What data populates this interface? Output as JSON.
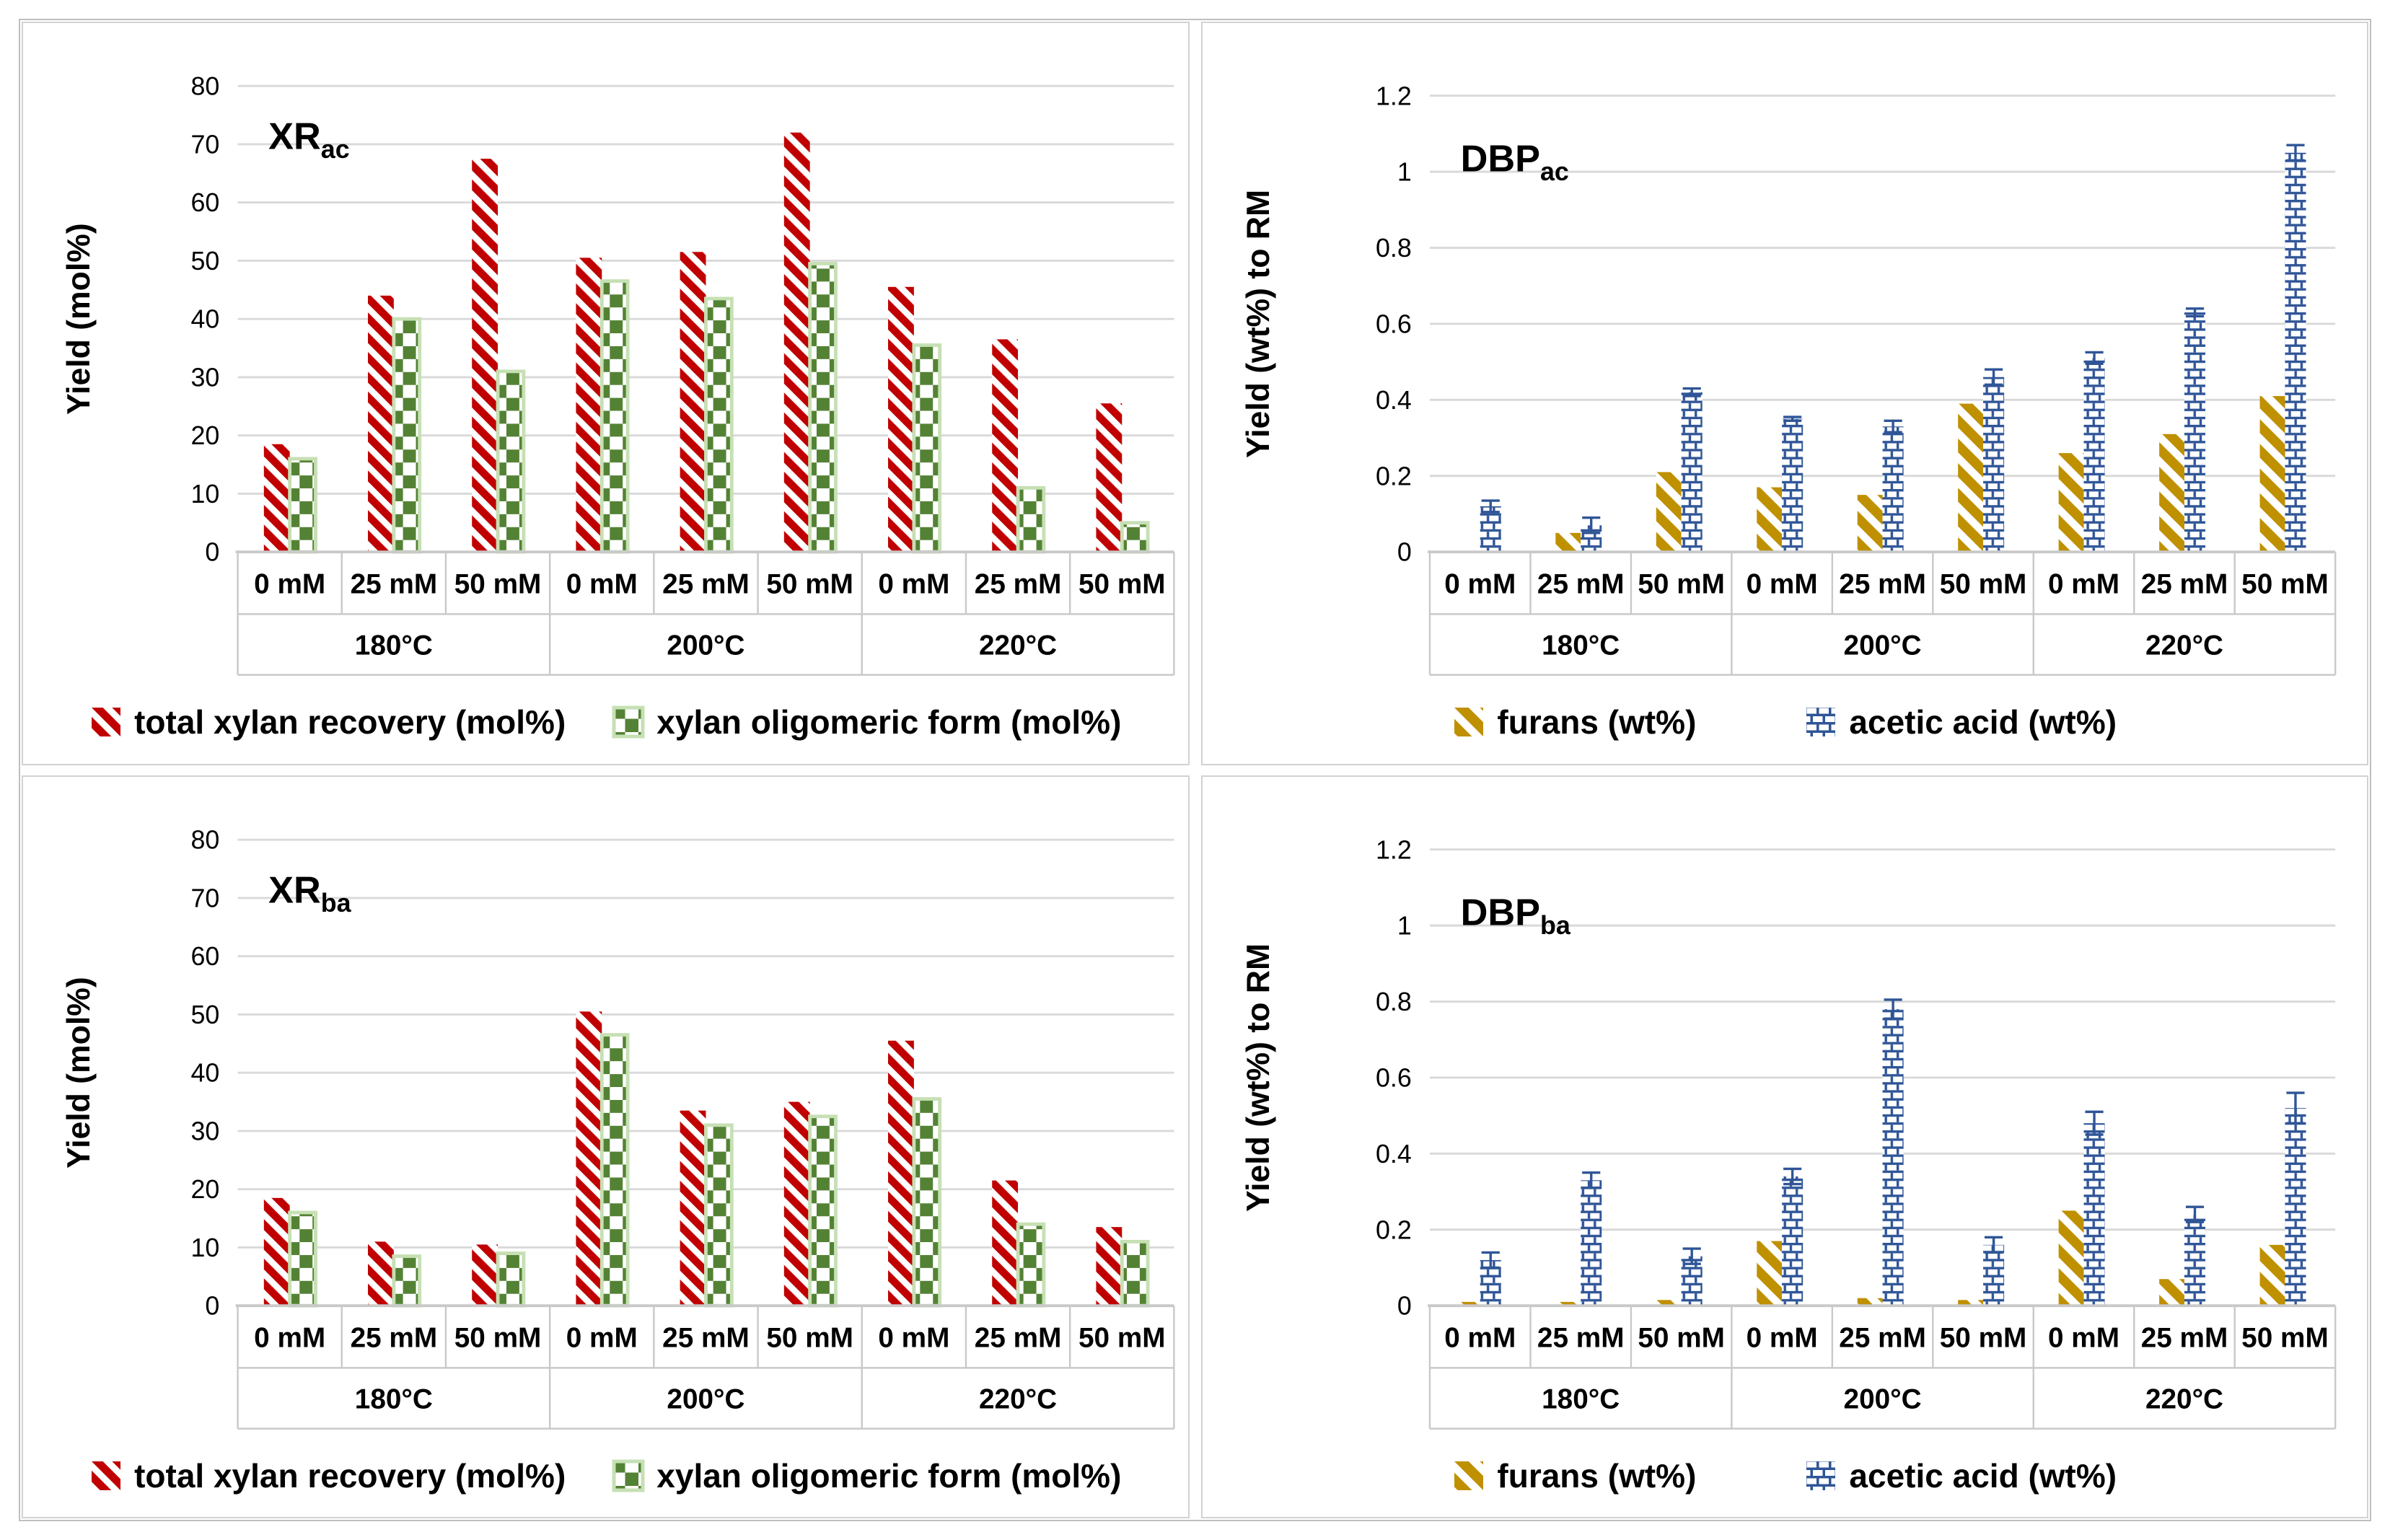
{
  "colors": {
    "red": "#C00000",
    "green": "#548235",
    "green_light": "#C6E0B4",
    "gold": "#BF9000",
    "blue": "#2F5597",
    "grid": "#D9D9D9",
    "axis": "#C9C9C9",
    "text": "#000000",
    "frame_border": "#BFBFBF",
    "panel_border": "#D2D2D2"
  },
  "chart_data": [
    {
      "type": "bar",
      "name": "xr-ac",
      "title": "XRac",
      "title_main": "XR",
      "title_sub": "ac",
      "ylabel": "Yield (mol%)",
      "xlabel": "",
      "ylim": [
        0,
        80
      ],
      "yticks": [
        0,
        10,
        20,
        30,
        40,
        50,
        60,
        70,
        80
      ],
      "ytick_labels": [
        "0",
        "10",
        "20",
        "30",
        "40",
        "50",
        "60",
        "70",
        "80"
      ],
      "grid": true,
      "legend_position": "bottom",
      "group_labels": [
        "0 mM",
        "25 mM",
        "50 mM",
        "0 mM",
        "25 mM",
        "50 mM",
        "0 mM",
        "25 mM",
        "50 mM"
      ],
      "temp_labels": [
        "180°C",
        "200°C",
        "220°C"
      ],
      "series": [
        {
          "name": "total xylan recovery (mol%)",
          "pattern": "red-hatch",
          "color": "#C00000",
          "values": [
            18.5,
            44,
            67.5,
            50.5,
            51.5,
            72,
            45.5,
            36.5,
            25.5
          ]
        },
        {
          "name": "xylan oligomeric form (mol%)",
          "pattern": "green-check",
          "color": "#548235",
          "values": [
            16,
            40,
            31,
            46.5,
            43.5,
            49.5,
            35.5,
            11,
            5
          ]
        }
      ]
    },
    {
      "type": "bar",
      "name": "dbp-ac",
      "title": "DBPac",
      "title_main": "DBP",
      "title_sub": "ac",
      "ylabel": "Yield (wt%)  to RM",
      "xlabel": "",
      "ylim": [
        0,
        1.2
      ],
      "yticks": [
        0,
        0.2,
        0.4,
        0.6,
        0.8,
        1,
        1.2
      ],
      "ytick_labels": [
        "0",
        "0.2",
        "0.4",
        "0.6",
        "0.8",
        "1",
        "1.2"
      ],
      "grid": true,
      "legend_position": "bottom",
      "group_labels": [
        "0 mM",
        "25 mM",
        "50 mM",
        "0 mM",
        "25 mM",
        "50 mM",
        "0 mM",
        "25 mM",
        "50 mM"
      ],
      "temp_labels": [
        "180°C",
        "200°C",
        "220°C"
      ],
      "series": [
        {
          "name": "furans (wt%)",
          "pattern": "gold-hatch",
          "color": "#BF9000",
          "values": [
            0,
            0.05,
            0.21,
            0.17,
            0.15,
            0.39,
            0.26,
            0.31,
            0.41
          ]
        },
        {
          "name": "acetic acid (wt%)",
          "pattern": "blue-brick",
          "color": "#2F5597",
          "values": [
            0.12,
            0.07,
            0.42,
            0.35,
            0.33,
            0.46,
            0.51,
            0.63,
            1.05
          ],
          "errors": [
            0.015,
            0.02,
            0.01,
            0.005,
            0.015,
            0.02,
            0.015,
            0.01,
            0.02
          ]
        }
      ]
    },
    {
      "type": "bar",
      "name": "xr-ba",
      "title": "XRba",
      "title_main": "XR",
      "title_sub": "ba",
      "ylabel": "Yield (mol%)",
      "xlabel": "",
      "ylim": [
        0,
        80
      ],
      "yticks": [
        0,
        10,
        20,
        30,
        40,
        50,
        60,
        70,
        80
      ],
      "ytick_labels": [
        "0",
        "10",
        "20",
        "30",
        "40",
        "50",
        "60",
        "70",
        "80"
      ],
      "grid": true,
      "legend_position": "bottom",
      "group_labels": [
        "0 mM",
        "25 mM",
        "50 mM",
        "0 mM",
        "25 mM",
        "50 mM",
        "0 mM",
        "25 mM",
        "50 mM"
      ],
      "temp_labels": [
        "180°C",
        "200°C",
        "220°C"
      ],
      "series": [
        {
          "name": "total xylan recovery (mol%)",
          "pattern": "red-hatch",
          "color": "#C00000",
          "values": [
            18.5,
            11,
            10.5,
            50.5,
            33.5,
            35,
            45.5,
            21.5,
            13.5
          ]
        },
        {
          "name": "xylan oligomeric form (mol%)",
          "pattern": "green-check",
          "color": "#548235",
          "values": [
            16,
            8.5,
            9,
            46.5,
            31,
            32.5,
            35.5,
            14,
            11
          ]
        }
      ]
    },
    {
      "type": "bar",
      "name": "dbp-ba",
      "title": "DBPba",
      "title_main": "DBP",
      "title_sub": "ba",
      "ylabel": "Yield (wt%)  to RM",
      "xlabel": "",
      "ylim": [
        0,
        1.2
      ],
      "yticks": [
        0,
        0.2,
        0.4,
        0.6,
        0.8,
        1,
        1.2
      ],
      "ytick_labels": [
        "0",
        "0.2",
        "0.4",
        "0.6",
        "0.8",
        "1",
        "1.2"
      ],
      "grid": true,
      "legend_position": "bottom",
      "group_labels": [
        "0 mM",
        "25 mM",
        "50 mM",
        "0 mM",
        "25 mM",
        "50 mM",
        "0 mM",
        "25 mM",
        "50 mM"
      ],
      "temp_labels": [
        "180°C",
        "200°C",
        "220°C"
      ],
      "series": [
        {
          "name": "furans (wt%)",
          "pattern": "gold-hatch",
          "color": "#BF9000",
          "values": [
            0.01,
            0.01,
            0.015,
            0.17,
            0.02,
            0.015,
            0.25,
            0.07,
            0.16
          ]
        },
        {
          "name": "acetic acid (wt%)",
          "pattern": "blue-brick",
          "color": "#2F5597",
          "values": [
            0.12,
            0.33,
            0.13,
            0.34,
            0.78,
            0.16,
            0.48,
            0.24,
            0.52
          ],
          "errors": [
            0.02,
            0.02,
            0.02,
            0.02,
            0.025,
            0.02,
            0.03,
            0.02,
            0.04
          ]
        }
      ]
    }
  ]
}
